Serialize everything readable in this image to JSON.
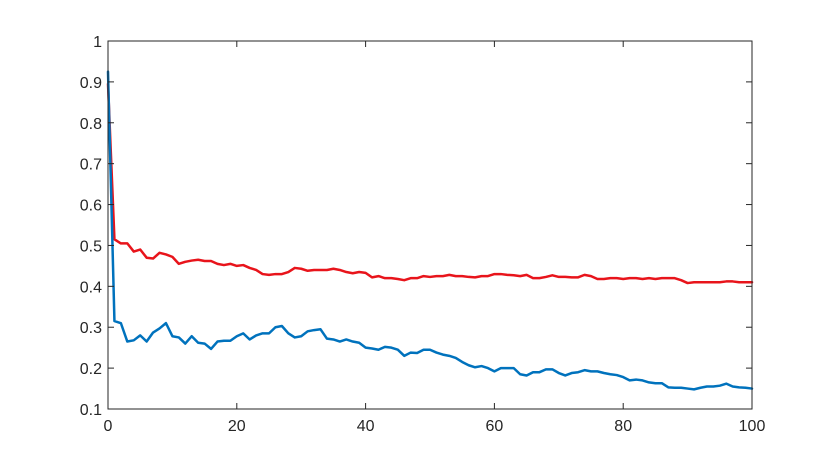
{
  "chart_data": {
    "type": "line",
    "title": "",
    "xlabel": "",
    "ylabel": "",
    "xlim": [
      0,
      100
    ],
    "ylim": [
      0.1,
      1
    ],
    "grid": false,
    "x_ticks": [
      0,
      20,
      40,
      60,
      80,
      100
    ],
    "x_tick_labels": [
      "0",
      "20",
      "40",
      "60",
      "80",
      "100"
    ],
    "y_ticks": [
      0.1,
      0.2,
      0.3,
      0.4,
      0.5,
      0.6,
      0.7,
      0.8,
      0.9,
      1
    ],
    "y_tick_labels": [
      "0.1",
      "0.2",
      "0.3",
      "0.4",
      "0.5",
      "0.6",
      "0.7",
      "0.8",
      "0.9",
      "1"
    ],
    "x": [
      0,
      1,
      2,
      3,
      4,
      5,
      6,
      7,
      8,
      9,
      10,
      11,
      12,
      13,
      14,
      15,
      16,
      17,
      18,
      19,
      20,
      21,
      22,
      23,
      24,
      25,
      26,
      27,
      28,
      29,
      30,
      31,
      32,
      33,
      34,
      35,
      36,
      37,
      38,
      39,
      40,
      41,
      42,
      43,
      44,
      45,
      46,
      47,
      48,
      49,
      50,
      51,
      52,
      53,
      54,
      55,
      56,
      57,
      58,
      59,
      60,
      61,
      62,
      63,
      64,
      65,
      66,
      67,
      68,
      69,
      70,
      71,
      72,
      73,
      74,
      75,
      76,
      77,
      78,
      79,
      80,
      81,
      82,
      83,
      84,
      85,
      86,
      87,
      88,
      89,
      90,
      91,
      92,
      93,
      94,
      95,
      96,
      97,
      98,
      99,
      100
    ],
    "series": [
      {
        "color": "#e8141b",
        "values": [
          0.895,
          0.515,
          0.505,
          0.505,
          0.485,
          0.49,
          0.47,
          0.468,
          0.482,
          0.478,
          0.472,
          0.455,
          0.46,
          0.463,
          0.465,
          0.462,
          0.462,
          0.455,
          0.452,
          0.455,
          0.45,
          0.452,
          0.445,
          0.44,
          0.43,
          0.428,
          0.43,
          0.43,
          0.435,
          0.445,
          0.443,
          0.438,
          0.44,
          0.44,
          0.44,
          0.443,
          0.44,
          0.435,
          0.432,
          0.435,
          0.433,
          0.422,
          0.425,
          0.42,
          0.42,
          0.418,
          0.415,
          0.42,
          0.42,
          0.425,
          0.423,
          0.425,
          0.425,
          0.428,
          0.425,
          0.425,
          0.423,
          0.422,
          0.425,
          0.425,
          0.43,
          0.43,
          0.428,
          0.427,
          0.425,
          0.428,
          0.42,
          0.42,
          0.423,
          0.427,
          0.423,
          0.423,
          0.422,
          0.422,
          0.428,
          0.425,
          0.418,
          0.418,
          0.42,
          0.42,
          0.418,
          0.42,
          0.42,
          0.418,
          0.42,
          0.418,
          0.42,
          0.42,
          0.42,
          0.415,
          0.408,
          0.41,
          0.41,
          0.41,
          0.41,
          0.41,
          0.412,
          0.412,
          0.41,
          0.41,
          0.41
        ]
      },
      {
        "color": "#0072bd",
        "values": [
          0.925,
          0.315,
          0.31,
          0.265,
          0.268,
          0.28,
          0.265,
          0.287,
          0.297,
          0.31,
          0.278,
          0.275,
          0.26,
          0.278,
          0.262,
          0.26,
          0.247,
          0.265,
          0.267,
          0.267,
          0.278,
          0.285,
          0.27,
          0.28,
          0.285,
          0.285,
          0.3,
          0.303,
          0.285,
          0.275,
          0.278,
          0.29,
          0.293,
          0.295,
          0.272,
          0.27,
          0.265,
          0.27,
          0.265,
          0.262,
          0.25,
          0.248,
          0.245,
          0.252,
          0.25,
          0.245,
          0.23,
          0.238,
          0.237,
          0.245,
          0.245,
          0.238,
          0.233,
          0.23,
          0.225,
          0.215,
          0.207,
          0.202,
          0.205,
          0.2,
          0.192,
          0.2,
          0.2,
          0.2,
          0.185,
          0.182,
          0.19,
          0.19,
          0.197,
          0.197,
          0.188,
          0.182,
          0.188,
          0.19,
          0.195,
          0.192,
          0.192,
          0.188,
          0.185,
          0.183,
          0.178,
          0.17,
          0.172,
          0.17,
          0.165,
          0.163,
          0.163,
          0.153,
          0.152,
          0.152,
          0.15,
          0.148,
          0.152,
          0.155,
          0.155,
          0.157,
          0.162,
          0.155,
          0.153,
          0.152,
          0.15
        ]
      }
    ]
  }
}
